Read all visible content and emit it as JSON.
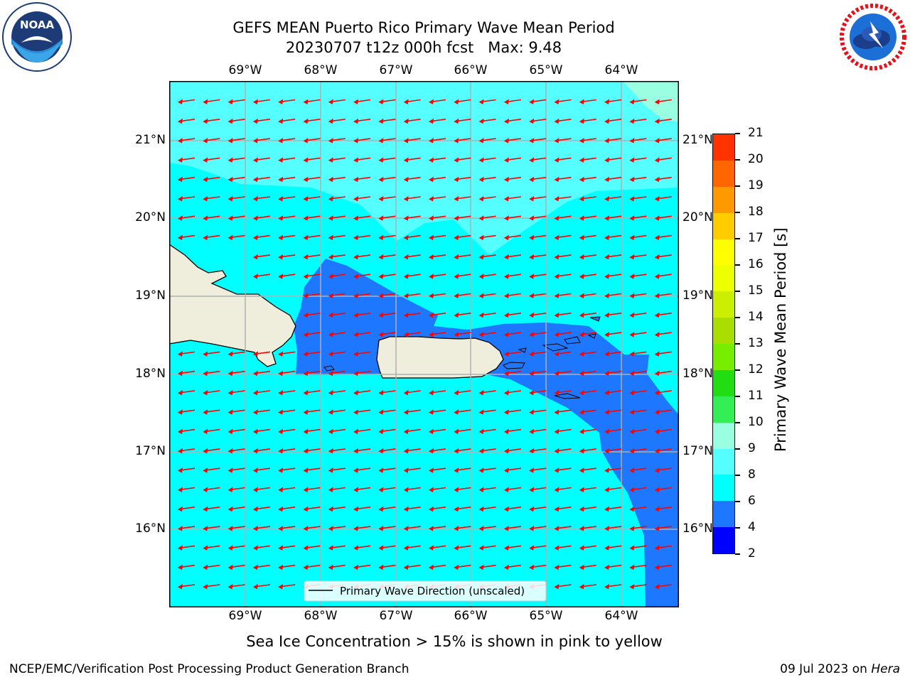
{
  "header": {
    "title_line1": "GEFS MEAN Puerto Rico Primary Wave Mean Period",
    "title_line2": "20230707 t12z 000h fcst   Max: 9.48"
  },
  "logos": {
    "left": {
      "text": "NOAA",
      "ring_text": "NATIONAL OCEANIC AND ATMOSPHERIC ADMINISTRATION • U.S. DEPARTMENT OF COMMERCE"
    },
    "right": {
      "ring_text": "NATIONAL WEATHER SERVICE"
    }
  },
  "map": {
    "lon_labels": [
      "69°W",
      "68°W",
      "67°W",
      "66°W",
      "65°W",
      "64°W"
    ],
    "lat_labels": [
      "21°N",
      "20°N",
      "19°N",
      "18°N",
      "17°N",
      "16°N"
    ],
    "legend_label": "Primary Wave Direction (unscaled)",
    "arrow_direction": "toward west-southwest",
    "colors": {
      "ocean_6_8": "#00ffff",
      "ocean_8_9": "#55ffff",
      "ocean_9_10": "#99ffe0",
      "ocean_4_6": "#1e78ff",
      "land": "#efeedc",
      "arrows": "#ff0000"
    }
  },
  "colorbar": {
    "label": "Primary Wave Mean Period [s]",
    "ticks": [
      "2",
      "4",
      "6",
      "8",
      "9",
      "10",
      "11",
      "12",
      "13",
      "14",
      "15",
      "16",
      "17",
      "18",
      "19",
      "20",
      "21"
    ],
    "colors": [
      "#0000ff",
      "#1e78ff",
      "#00ffff",
      "#55ffff",
      "#99ffe0",
      "#33ee55",
      "#22dd11",
      "#77ee00",
      "#aadd00",
      "#ccee00",
      "#eeff00",
      "#ffff00",
      "#ffcc00",
      "#ff9900",
      "#ff6600",
      "#ff3300",
      "#ff0000"
    ]
  },
  "caption": "Sea Ice Concentration > 15% is shown in pink to yellow",
  "footer": {
    "left": "NCEP/EMC/Verification Post Processing Product Generation Branch",
    "right_prefix": "09 Jul 2023 on ",
    "right_host": "Hera"
  }
}
